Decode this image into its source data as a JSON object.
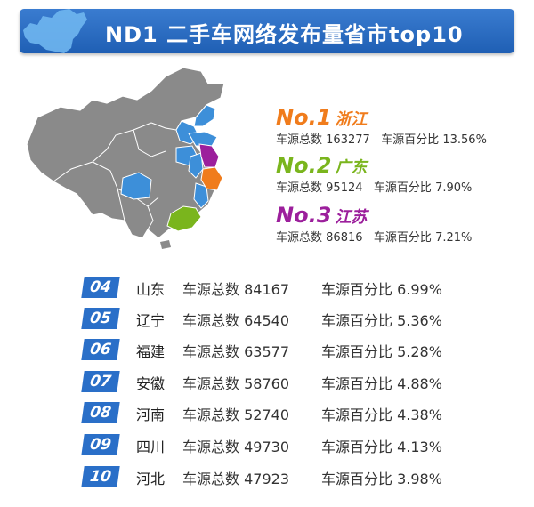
{
  "title": "ND1 二手车网络发布量省市top10",
  "colors": {
    "banner": "#2a6fc8",
    "map_gray": "#8a8a8a",
    "blue_region": "#3d8fd9",
    "first": "#f07c1c",
    "second": "#7ab51d",
    "third": "#9c1f9c"
  },
  "top3": [
    {
      "rank": "No.1",
      "province": "浙江",
      "count_label": "车源总数",
      "count": "163277",
      "pct_label": "车源百分比",
      "pct": "13.56%",
      "color": "#f07c1c"
    },
    {
      "rank": "No.2",
      "province": "广东",
      "count_label": "车源总数",
      "count": "95124",
      "pct_label": "车源百分比",
      "pct": "7.90%",
      "color": "#7ab51d"
    },
    {
      "rank": "No.3",
      "province": "江苏",
      "count_label": "车源总数",
      "count": "86816",
      "pct_label": "车源百分比",
      "pct": "7.21%",
      "color": "#9c1f9c"
    }
  ],
  "rows": [
    {
      "rank": "04",
      "province": "山东",
      "count_label": "车源总数",
      "count": "84167",
      "pct_label": "车源百分比",
      "pct": "6.99%"
    },
    {
      "rank": "05",
      "province": "辽宁",
      "count_label": "车源总数",
      "count": "64540",
      "pct_label": "车源百分比",
      "pct": "5.36%"
    },
    {
      "rank": "06",
      "province": "福建",
      "count_label": "车源总数",
      "count": "63577",
      "pct_label": "车源百分比",
      "pct": "5.28%"
    },
    {
      "rank": "07",
      "province": "安徽",
      "count_label": "车源总数",
      "count": "58760",
      "pct_label": "车源百分比",
      "pct": "4.88%"
    },
    {
      "rank": "08",
      "province": "河南",
      "count_label": "车源总数",
      "count": "52740",
      "pct_label": "车源百分比",
      "pct": "4.38%"
    },
    {
      "rank": "09",
      "province": "四川",
      "count_label": "车源总数",
      "count": "49730",
      "pct_label": "车源百分比",
      "pct": "4.13%"
    },
    {
      "rank": "10",
      "province": "河北",
      "count_label": "车源总数",
      "count": "47923",
      "pct_label": "车源百分比",
      "pct": "3.98%"
    }
  ]
}
